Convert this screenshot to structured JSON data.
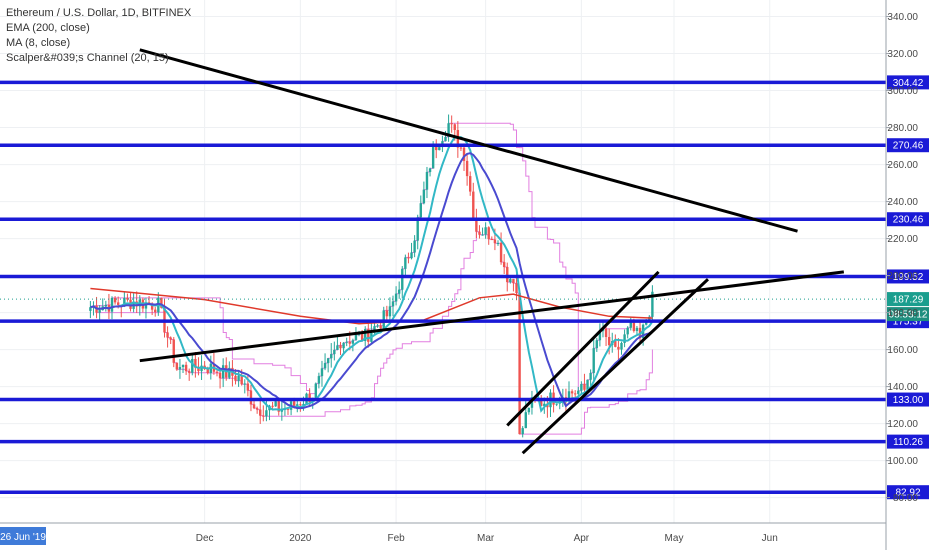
{
  "legend": {
    "title": "Ethereum / U.S. Dollar, 1D, BITFINEX",
    "ema": "EMA (200, close)",
    "ma": "MA (8, close)",
    "channel": "Scalper&#039;s Channel (20, 15)"
  },
  "colors": {
    "level": "#1a1ad6",
    "trend": "#000000",
    "ema200": "#e0392b",
    "ma8": "#32b8c6",
    "slow": "#4a4ad0",
    "channel": "#e27fe0",
    "up": "#26a69a",
    "down": "#ef5350",
    "current": "#1a9e8e",
    "countdown": "#1e8e7e"
  },
  "chart_data": {
    "type": "candlestick",
    "symbol": "Ethereum / U.S. Dollar",
    "timeframe": "1D",
    "exchange": "BITFINEX",
    "y_axis_ticks": [
      340,
      320,
      300,
      280,
      260,
      240,
      220,
      200,
      180,
      160,
      140,
      120,
      100,
      80
    ],
    "ylim": [
      76,
      343
    ],
    "x_axis_labels": [
      "Dec",
      "2020",
      "Feb",
      "Mar",
      "Apr",
      "May",
      "Jun"
    ],
    "highlighted_date": "26 Jun '19",
    "horizontal_levels": [
      304.42,
      270.46,
      230.46,
      199.52,
      175.37,
      133.0,
      110.26,
      82.92
    ],
    "current_price": 187.29,
    "countdown": "08:53:12",
    "trendlines": [
      {
        "name": "descending-resistance",
        "from": [
          "2019-11-10",
          322
        ],
        "to": [
          "2020-06-10",
          224
        ]
      },
      {
        "name": "ascending-support",
        "from": [
          "2019-11-10",
          154
        ],
        "to": [
          "2020-06-25",
          202
        ]
      },
      {
        "name": "channel-upper",
        "from": [
          "2020-03-08",
          119
        ],
        "to": [
          "2020-04-26",
          202
        ]
      },
      {
        "name": "channel-lower",
        "from": [
          "2020-03-13",
          104
        ],
        "to": [
          "2020-05-12",
          198
        ]
      }
    ]
  }
}
